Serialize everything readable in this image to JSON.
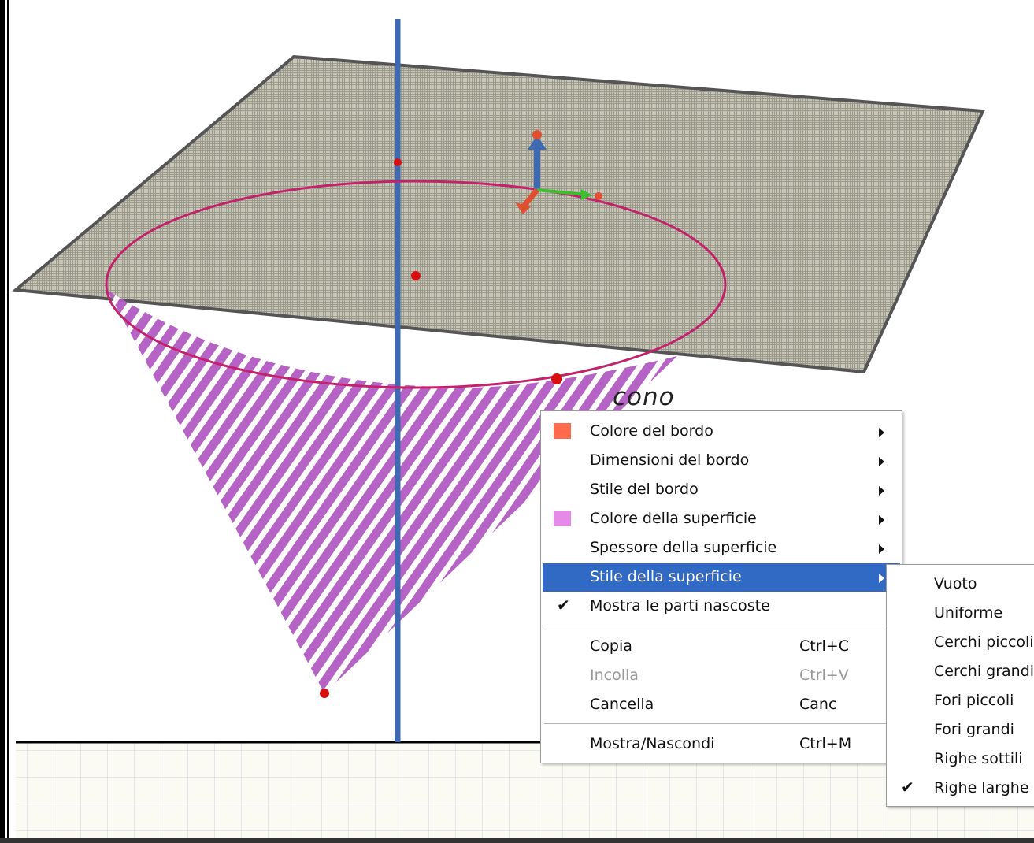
{
  "viewport": {
    "object_label": "cono"
  },
  "context_menu": {
    "items": [
      {
        "label": "Colore del bordo",
        "submenu": true,
        "swatch": "#ff6a4d"
      },
      {
        "label": "Dimensioni del bordo",
        "submenu": true
      },
      {
        "label": "Stile del bordo",
        "submenu": true
      },
      {
        "label": "Colore della superficie",
        "submenu": true,
        "swatch": "#e68ae8"
      },
      {
        "label": "Spessore della superficie",
        "submenu": true
      },
      {
        "label": "Stile della superficie",
        "submenu": true,
        "highlighted": true
      },
      {
        "label": "Mostra le parti nascoste",
        "checked": true
      },
      {
        "label": "Copia",
        "shortcut": "Ctrl+C"
      },
      {
        "label": "Incolla",
        "shortcut": "Ctrl+V",
        "disabled": true
      },
      {
        "label": "Cancella",
        "shortcut": "Canc"
      },
      {
        "label": "Mostra/Nascondi",
        "shortcut": "Ctrl+M"
      }
    ],
    "check_glyph": "✔"
  },
  "submenu": {
    "items": [
      {
        "label": "Vuoto"
      },
      {
        "label": "Uniforme"
      },
      {
        "label": "Cerchi piccoli"
      },
      {
        "label": "Cerchi grandi"
      },
      {
        "label": "Fori piccoli"
      },
      {
        "label": "Fori grandi"
      },
      {
        "label": "Righe sottili"
      },
      {
        "label": "Righe larghe",
        "checked": true
      }
    ]
  },
  "colors": {
    "plane_fill": "#b9b6a6",
    "cone_stripe": "#b15bc2",
    "circle_stroke": "#c4216b",
    "axis_blue": "#3d6ab2",
    "point_red": "#d90f0f",
    "menu_highlight": "#316ac5"
  }
}
